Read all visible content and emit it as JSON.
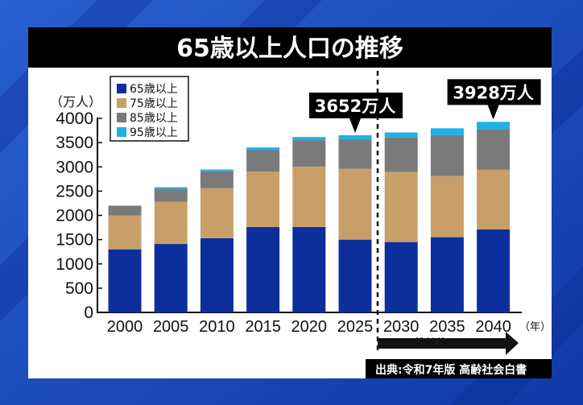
{
  "colors": {
    "age65": "#0c2f9c",
    "age75": "#c89f68",
    "age85": "#7a7a7a",
    "age95": "#1fb0e6",
    "background": "#1848b8",
    "title_bar": "#000000"
  },
  "chart_data": {
    "type": "bar",
    "stacked": true,
    "title": "65歳以上人口の推移",
    "ylabel": "（万人）",
    "xlabel": "（年）",
    "ylim": [
      0,
      4000
    ],
    "yticks": [
      "0",
      "500",
      "1000",
      "1500",
      "2000",
      "2500",
      "3000",
      "3500",
      "4000"
    ],
    "categories": [
      "2000",
      "2005",
      "2010",
      "2015",
      "2020",
      "2025",
      "2030",
      "2035",
      "2040"
    ],
    "series": [
      {
        "name": "65歳以上",
        "values": [
          1300,
          1410,
          1530,
          1760,
          1760,
          1500,
          1450,
          1550,
          1710
        ]
      },
      {
        "name": "75歳以上",
        "values": [
          700,
          870,
          1030,
          1145,
          1245,
          1460,
          1445,
          1260,
          1230
        ]
      },
      {
        "name": "85歳以上",
        "values": [
          200,
          270,
          350,
          440,
          545,
          610,
          710,
          840,
          840
        ]
      },
      {
        "name": "95歳以上",
        "values": [
          0,
          30,
          35,
          55,
          65,
          82,
          105,
          145,
          148
        ]
      }
    ],
    "legend_position": "top-left",
    "grid": false,
    "annotations": [
      {
        "category": "2025",
        "text": "3652万人"
      },
      {
        "category": "2040",
        "text": "3928万人"
      }
    ],
    "projection": {
      "from_category": "2030",
      "label": "推計値"
    },
    "source": "出典:令和7年版 高齢社会白書"
  }
}
